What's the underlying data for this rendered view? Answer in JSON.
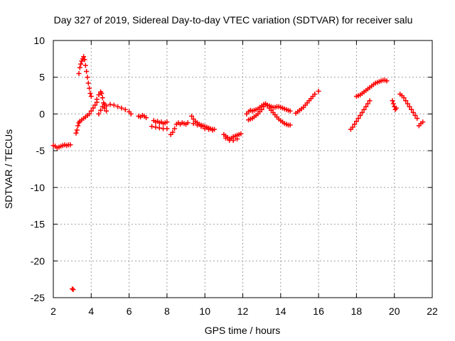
{
  "chart_data": {
    "type": "scatter",
    "title": "Day 327 of 2019, Sidereal Day-to-day VTEC variation (SDTVAR) for receiver salu",
    "xlabel": "GPS time / hours",
    "ylabel": "SDTVAR / TECUs",
    "xlim": [
      2,
      22
    ],
    "ylim": [
      -25,
      10
    ],
    "xticks": [
      2,
      4,
      6,
      8,
      10,
      12,
      14,
      16,
      18,
      20,
      22
    ],
    "yticks": [
      10,
      5,
      0,
      -5,
      -10,
      -15,
      -20,
      -25
    ],
    "grid": true,
    "marker": "+",
    "color": "#ff0000",
    "series": [
      {
        "name": "SDTVAR",
        "points": [
          [
            2.0,
            -4.3
          ],
          [
            2.1,
            -4.4
          ],
          [
            2.2,
            -4.6
          ],
          [
            2.3,
            -4.5
          ],
          [
            2.4,
            -4.4
          ],
          [
            2.5,
            -4.3
          ],
          [
            2.6,
            -4.2
          ],
          [
            2.7,
            -4.3
          ],
          [
            2.8,
            -4.2
          ],
          [
            2.9,
            -4.2
          ],
          [
            3.0,
            -23.8
          ],
          [
            3.05,
            -23.9
          ],
          [
            3.2,
            -2.6
          ],
          [
            3.25,
            -2.2
          ],
          [
            3.3,
            -1.6
          ],
          [
            3.35,
            -1.2
          ],
          [
            3.4,
            -1.0
          ],
          [
            3.5,
            -0.8
          ],
          [
            3.6,
            -0.6
          ],
          [
            3.7,
            -0.4
          ],
          [
            3.8,
            -0.2
          ],
          [
            3.9,
            0.0
          ],
          [
            4.0,
            0.4
          ],
          [
            4.1,
            0.8
          ],
          [
            4.2,
            1.2
          ],
          [
            4.3,
            1.6
          ],
          [
            3.35,
            5.5
          ],
          [
            3.4,
            6.3
          ],
          [
            3.45,
            6.8
          ],
          [
            3.5,
            7.2
          ],
          [
            3.55,
            7.5
          ],
          [
            3.6,
            7.8
          ],
          [
            3.65,
            7.4
          ],
          [
            3.7,
            6.6
          ],
          [
            3.75,
            5.8
          ],
          [
            3.8,
            5.0
          ],
          [
            3.85,
            4.2
          ],
          [
            3.9,
            3.5
          ],
          [
            3.95,
            2.8
          ],
          [
            4.0,
            2.4
          ],
          [
            4.3,
            2.0
          ],
          [
            4.4,
            2.6
          ],
          [
            4.5,
            3.0
          ],
          [
            4.55,
            2.8
          ],
          [
            4.6,
            2.2
          ],
          [
            4.65,
            1.5
          ],
          [
            4.7,
            0.8
          ],
          [
            4.8,
            0.4
          ],
          [
            4.4,
            0.0
          ],
          [
            4.5,
            0.5
          ],
          [
            4.6,
            1.0
          ],
          [
            4.7,
            1.3
          ],
          [
            4.8,
            1.1
          ],
          [
            5.0,
            1.3
          ],
          [
            5.2,
            1.2
          ],
          [
            5.4,
            1.0
          ],
          [
            5.6,
            0.8
          ],
          [
            5.8,
            0.6
          ],
          [
            6.0,
            0.3
          ],
          [
            6.1,
            0.0
          ],
          [
            6.5,
            -0.3
          ],
          [
            6.6,
            -0.4
          ],
          [
            6.7,
            -0.2
          ],
          [
            6.8,
            -0.3
          ],
          [
            6.9,
            -0.5
          ],
          [
            7.3,
            -0.9
          ],
          [
            7.4,
            -1.1
          ],
          [
            7.5,
            -1.0
          ],
          [
            7.6,
            -1.2
          ],
          [
            7.7,
            -1.1
          ],
          [
            7.8,
            -1.3
          ],
          [
            7.9,
            -1.2
          ],
          [
            8.0,
            -1.1
          ],
          [
            7.2,
            -1.7
          ],
          [
            7.4,
            -1.8
          ],
          [
            7.6,
            -1.9
          ],
          [
            7.8,
            -2.0
          ],
          [
            8.0,
            -2.0
          ],
          [
            8.2,
            -2.8
          ],
          [
            8.3,
            -2.5
          ],
          [
            8.4,
            -2.0
          ],
          [
            8.5,
            -1.4
          ],
          [
            8.6,
            -1.2
          ],
          [
            8.7,
            -1.4
          ],
          [
            8.8,
            -1.2
          ],
          [
            8.9,
            -1.3
          ],
          [
            9.0,
            -1.4
          ],
          [
            9.1,
            -1.2
          ],
          [
            9.3,
            -0.3
          ],
          [
            9.4,
            -0.7
          ],
          [
            9.5,
            -1.0
          ],
          [
            9.6,
            -1.2
          ],
          [
            9.7,
            -1.4
          ],
          [
            9.8,
            -1.5
          ],
          [
            9.9,
            -1.6
          ],
          [
            10.0,
            -1.7
          ],
          [
            10.1,
            -1.8
          ],
          [
            10.2,
            -1.9
          ],
          [
            10.3,
            -2.0
          ],
          [
            10.4,
            -2.1
          ],
          [
            10.5,
            -2.1
          ],
          [
            9.4,
            -1.3
          ],
          [
            9.6,
            -1.5
          ],
          [
            9.8,
            -1.7
          ],
          [
            10.0,
            -2.0
          ],
          [
            10.2,
            -2.1
          ],
          [
            10.4,
            -2.2
          ],
          [
            11.0,
            -2.8
          ],
          [
            11.1,
            -3.0
          ],
          [
            11.2,
            -3.2
          ],
          [
            11.3,
            -3.4
          ],
          [
            11.4,
            -3.3
          ],
          [
            11.5,
            -3.1
          ],
          [
            11.6,
            -3.0
          ],
          [
            11.7,
            -2.9
          ],
          [
            11.8,
            -2.8
          ],
          [
            11.9,
            -2.7
          ],
          [
            11.1,
            -3.3
          ],
          [
            11.3,
            -3.6
          ],
          [
            11.5,
            -3.6
          ],
          [
            11.7,
            -3.4
          ],
          [
            12.2,
            0.0
          ],
          [
            12.3,
            0.3
          ],
          [
            12.4,
            0.5
          ],
          [
            12.5,
            0.4
          ],
          [
            12.6,
            0.5
          ],
          [
            12.7,
            0.6
          ],
          [
            12.8,
            0.7
          ],
          [
            12.9,
            0.9
          ],
          [
            13.0,
            1.1
          ],
          [
            13.1,
            1.3
          ],
          [
            13.2,
            1.3
          ],
          [
            13.3,
            1.2
          ],
          [
            13.4,
            1.1
          ],
          [
            13.5,
            1.0
          ],
          [
            13.6,
            0.9
          ],
          [
            13.7,
            0.9
          ],
          [
            13.8,
            1.0
          ],
          [
            13.9,
            1.0
          ],
          [
            14.0,
            0.9
          ],
          [
            14.1,
            0.8
          ],
          [
            14.2,
            0.7
          ],
          [
            14.3,
            0.6
          ],
          [
            14.4,
            0.5
          ],
          [
            14.5,
            0.4
          ],
          [
            12.3,
            -0.8
          ],
          [
            12.4,
            -0.7
          ],
          [
            12.5,
            -0.6
          ],
          [
            12.6,
            -0.4
          ],
          [
            12.7,
            -0.2
          ],
          [
            12.8,
            0.0
          ],
          [
            12.9,
            0.3
          ],
          [
            13.0,
            0.6
          ],
          [
            13.1,
            1.0
          ],
          [
            13.2,
            1.4
          ],
          [
            13.3,
            1.2
          ],
          [
            13.4,
            0.8
          ],
          [
            13.5,
            0.5
          ],
          [
            13.6,
            0.2
          ],
          [
            13.7,
            -0.1
          ],
          [
            13.8,
            -0.4
          ],
          [
            13.9,
            -0.7
          ],
          [
            14.0,
            -0.9
          ],
          [
            14.1,
            -1.1
          ],
          [
            14.2,
            -1.3
          ],
          [
            14.3,
            -1.4
          ],
          [
            14.4,
            -1.5
          ],
          [
            14.5,
            -1.5
          ],
          [
            14.8,
            0.1
          ],
          [
            14.9,
            0.3
          ],
          [
            15.0,
            0.5
          ],
          [
            15.1,
            0.7
          ],
          [
            15.2,
            0.9
          ],
          [
            15.3,
            1.2
          ],
          [
            15.4,
            1.5
          ],
          [
            15.5,
            1.8
          ],
          [
            15.6,
            2.1
          ],
          [
            15.7,
            2.4
          ],
          [
            15.8,
            2.7
          ],
          [
            16.0,
            3.1
          ],
          [
            17.7,
            -2.1
          ],
          [
            17.8,
            -1.8
          ],
          [
            17.9,
            -1.4
          ],
          [
            18.0,
            -1.0
          ],
          [
            18.1,
            -0.6
          ],
          [
            18.2,
            -0.2
          ],
          [
            18.3,
            0.2
          ],
          [
            18.4,
            0.6
          ],
          [
            18.5,
            1.0
          ],
          [
            18.6,
            1.4
          ],
          [
            18.7,
            1.8
          ],
          [
            18.0,
            2.4
          ],
          [
            18.1,
            2.5
          ],
          [
            18.2,
            2.6
          ],
          [
            18.3,
            2.8
          ],
          [
            18.4,
            3.0
          ],
          [
            18.5,
            3.2
          ],
          [
            18.6,
            3.4
          ],
          [
            18.7,
            3.6
          ],
          [
            18.8,
            3.8
          ],
          [
            18.9,
            4.0
          ],
          [
            19.0,
            4.2
          ],
          [
            19.1,
            4.3
          ],
          [
            19.2,
            4.4
          ],
          [
            19.3,
            4.5
          ],
          [
            19.4,
            4.6
          ],
          [
            19.5,
            4.6
          ],
          [
            19.6,
            4.5
          ],
          [
            19.9,
            1.8
          ],
          [
            19.95,
            1.4
          ],
          [
            20.0,
            1.0
          ],
          [
            20.05,
            0.6
          ],
          [
            20.1,
            0.8
          ],
          [
            20.3,
            2.7
          ],
          [
            20.4,
            2.5
          ],
          [
            20.5,
            2.2
          ],
          [
            20.6,
            1.8
          ],
          [
            20.7,
            1.4
          ],
          [
            20.8,
            1.0
          ],
          [
            20.9,
            0.6
          ],
          [
            21.0,
            0.2
          ],
          [
            21.1,
            -0.2
          ],
          [
            21.2,
            -0.6
          ],
          [
            21.3,
            -1.6
          ],
          [
            21.4,
            -1.3
          ],
          [
            21.5,
            -1.1
          ]
        ]
      }
    ]
  }
}
